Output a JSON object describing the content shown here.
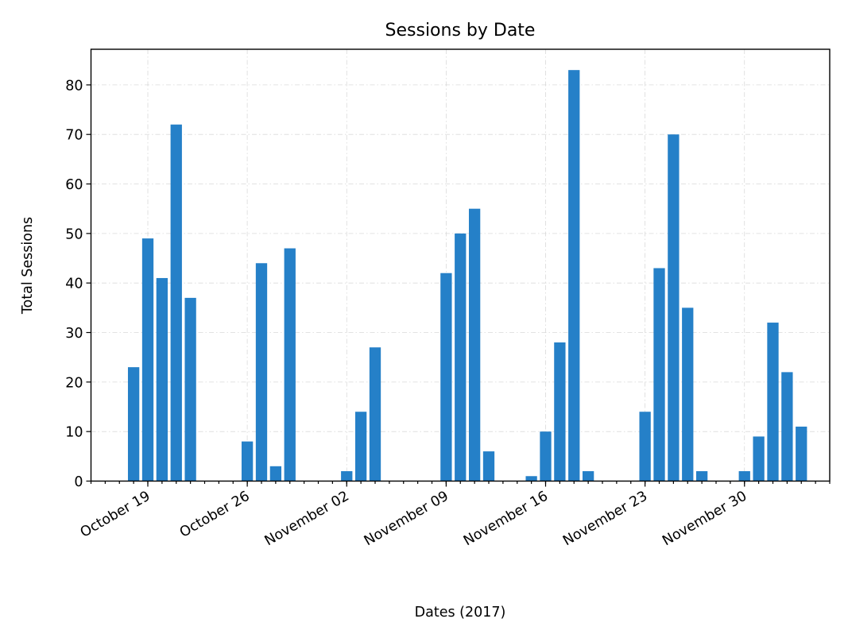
{
  "chart_data": {
    "type": "bar",
    "title": "Sessions by Date",
    "xlabel": "Dates (2017)",
    "ylabel": "Total Sessions",
    "color": "#2580c8",
    "grid": true,
    "x_start": "2017-10-15",
    "x_end": "2017-12-06",
    "ylim": [
      0,
      87.2
    ],
    "yticks": [
      0,
      10,
      20,
      30,
      40,
      50,
      60,
      70,
      80
    ],
    "xticks": [
      {
        "date": "2017-10-19",
        "label": "October 19"
      },
      {
        "date": "2017-10-26",
        "label": "October 26"
      },
      {
        "date": "2017-11-02",
        "label": "November 02"
      },
      {
        "date": "2017-11-09",
        "label": "November 09"
      },
      {
        "date": "2017-11-16",
        "label": "November 16"
      },
      {
        "date": "2017-11-23",
        "label": "November 23"
      },
      {
        "date": "2017-11-30",
        "label": "November 30"
      }
    ],
    "dates": [
      "2017-10-18",
      "2017-10-19",
      "2017-10-20",
      "2017-10-21",
      "2017-10-22",
      "2017-10-23",
      "2017-10-24",
      "2017-10-25",
      "2017-10-26",
      "2017-10-27",
      "2017-10-28",
      "2017-10-29",
      "2017-10-30",
      "2017-10-31",
      "2017-11-01",
      "2017-11-02",
      "2017-11-03",
      "2017-11-04",
      "2017-11-05",
      "2017-11-06",
      "2017-11-07",
      "2017-11-08",
      "2017-11-09",
      "2017-11-10",
      "2017-11-11",
      "2017-11-12",
      "2017-11-13",
      "2017-11-14",
      "2017-11-15",
      "2017-11-16",
      "2017-11-17",
      "2017-11-18",
      "2017-11-19",
      "2017-11-20",
      "2017-11-21",
      "2017-11-22",
      "2017-11-23",
      "2017-11-24",
      "2017-11-25",
      "2017-11-26",
      "2017-11-27",
      "2017-11-28",
      "2017-11-29",
      "2017-11-30",
      "2017-12-01",
      "2017-12-02",
      "2017-12-03",
      "2017-12-04"
    ],
    "values": [
      23,
      49,
      41,
      72,
      37,
      0,
      0,
      0,
      8,
      44,
      3,
      47,
      0,
      0,
      0,
      2,
      14,
      27,
      0,
      0,
      0,
      0,
      42,
      50,
      55,
      6,
      0,
      0,
      1,
      10,
      28,
      83,
      2,
      0,
      0,
      0,
      14,
      43,
      70,
      35,
      2,
      0,
      0,
      2,
      9,
      32,
      22,
      11
    ]
  }
}
